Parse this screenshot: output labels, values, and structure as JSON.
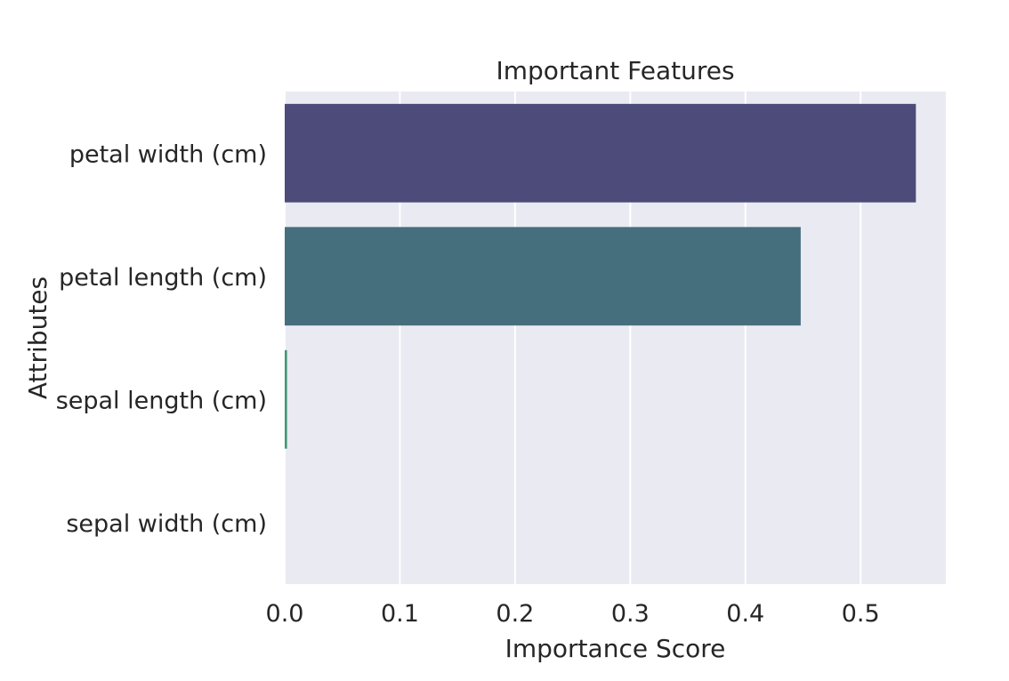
{
  "chart_data": {
    "type": "bar",
    "orientation": "horizontal",
    "title": "Important Features",
    "xlabel": "Importance Score",
    "ylabel": "Attributes",
    "categories": [
      "petal width (cm)",
      "petal length (cm)",
      "sepal length (cm)",
      "sepal width (cm)"
    ],
    "values": [
      0.548,
      0.448,
      0.002,
      0.0
    ],
    "colors": [
      "#4c4b7a",
      "#466f7e",
      "#3f9874",
      "#61c15f"
    ],
    "xlim": [
      0,
      0.574
    ],
    "x_ticks": [
      "0.0",
      "0.1",
      "0.2",
      "0.3",
      "0.4",
      "0.5"
    ],
    "x_tick_values": [
      0,
      0.1,
      0.2,
      0.3,
      0.4,
      0.5
    ],
    "grid": true,
    "background_color": "#eaeaf2",
    "grid_color": "#ffffff"
  }
}
